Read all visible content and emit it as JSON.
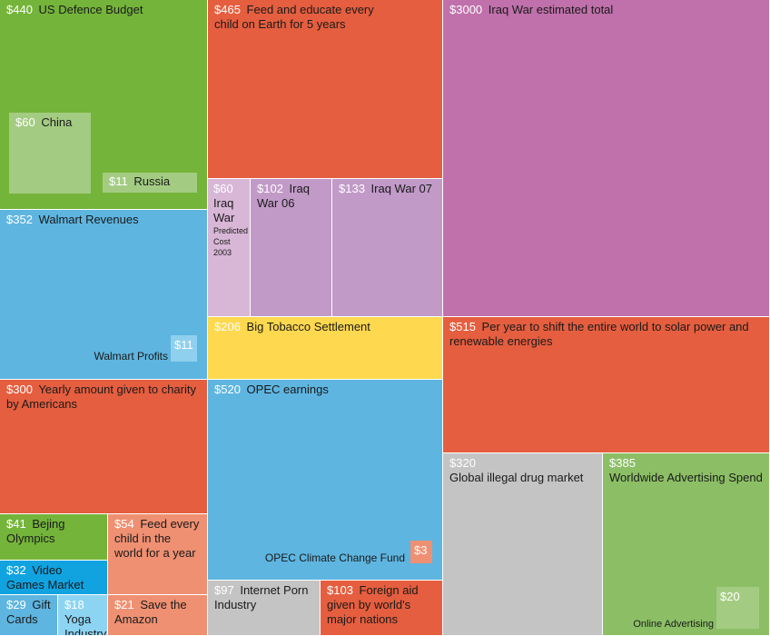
{
  "colors": {
    "green": "#74b43a",
    "orange": "#e55e3f",
    "purple": "#c070ab",
    "blue": "#5eb5e0",
    "yellow": "#fed84e",
    "grey": "#c4c4c4",
    "lightgreen": "#8cbf65",
    "pale": "#d8b6d6",
    "lavender": "#c19ac8",
    "salmon": "#ef9072",
    "deepblue": "#10a3e0",
    "lightblue": "#8dd4f3"
  },
  "chart_data": {
    "type": "treemap",
    "currency": "$",
    "items": [
      {
        "value": 440,
        "label": "US Defence Budget",
        "color": "green"
      },
      {
        "value": 60,
        "label": "China",
        "color": "green"
      },
      {
        "value": 11,
        "label": "Russia",
        "color": "green"
      },
      {
        "value": 465,
        "label": "Feed and educate every child on Earth for 5 years",
        "color": "orange"
      },
      {
        "value": 3000,
        "label": "Iraq War estimated total",
        "color": "purple"
      },
      {
        "value": 60,
        "label": "Iraq War",
        "note": "Predicted Cost 2003",
        "color": "purple"
      },
      {
        "value": 102,
        "label": "Iraq War 06",
        "color": "purple"
      },
      {
        "value": 133,
        "label": "Iraq War 07",
        "color": "purple"
      },
      {
        "value": 352,
        "label": "Walmart Revenues",
        "color": "blue"
      },
      {
        "value": 11,
        "label": "Walmart Profits",
        "color": "blue"
      },
      {
        "value": 206,
        "label": "Big Tobacco Settlement",
        "color": "yellow"
      },
      {
        "value": 515,
        "label": "Per year to shift the entire world to solar power and renewable energies",
        "color": "orange"
      },
      {
        "value": 300,
        "label": "Yearly amount given to charity by Americans",
        "color": "orange"
      },
      {
        "value": 520,
        "label": "OPEC earnings",
        "color": "blue"
      },
      {
        "value": 3,
        "label": "OPEC Climate Change Fund",
        "color": "orange"
      },
      {
        "value": 320,
        "label": "Global illegal drug market",
        "color": "grey"
      },
      {
        "value": 385,
        "label": "Worldwide Advertising Spend",
        "color": "green"
      },
      {
        "value": 20,
        "label": "Online Advertising",
        "color": "green"
      },
      {
        "value": 41,
        "label": "Bejing Olympics",
        "color": "green"
      },
      {
        "value": 54,
        "label": "Feed every child in the world for a year",
        "color": "orange"
      },
      {
        "value": 32,
        "label": "Video Games Market",
        "color": "blue"
      },
      {
        "value": 29,
        "label": "Gift Cards",
        "color": "blue"
      },
      {
        "value": 18,
        "label": "Yoga Industry",
        "color": "blue"
      },
      {
        "value": 21,
        "label": "Save the Amazon",
        "color": "orange"
      },
      {
        "value": 97,
        "label": "Internet Porn Industry",
        "color": "grey"
      },
      {
        "value": 103,
        "label": "Foreign aid given by world's major nations",
        "color": "orange"
      }
    ]
  }
}
